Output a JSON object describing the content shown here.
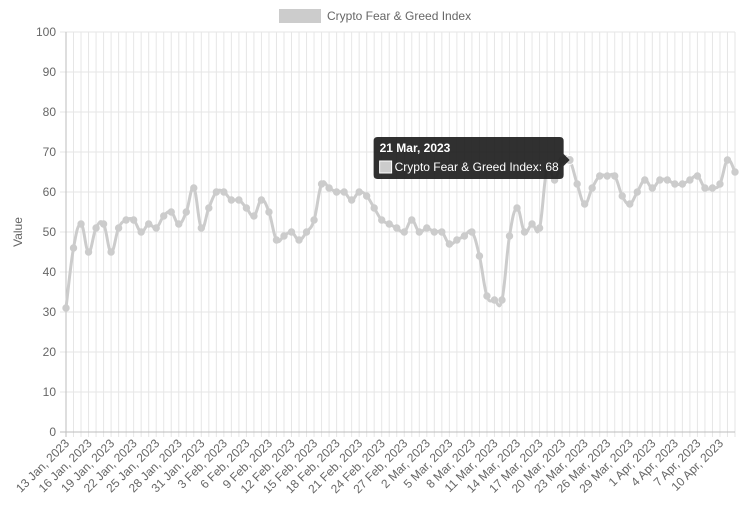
{
  "chart_data": {
    "type": "line",
    "legend": {
      "label": "Crypto Fear & Greed Index",
      "position": "top"
    },
    "ylabel": "Value",
    "ylim": [
      0,
      100
    ],
    "yticks": [
      0,
      10,
      20,
      30,
      40,
      50,
      60,
      70,
      80,
      90,
      100
    ],
    "grid": true,
    "colors": {
      "line": "#cccccc",
      "point": "#cccccc",
      "grid": "#e6e6e6",
      "tooltip_bg": "#1e1e1e"
    },
    "start_label": "13 Jan, 2023",
    "x_tick_labels": [
      "13 Jan, 2023",
      "16 Jan, 2023",
      "19 Jan, 2023",
      "22 Jan, 2023",
      "25 Jan, 2023",
      "28 Jan, 2023",
      "31 Jan, 2023",
      "3 Feb, 2023",
      "6 Feb, 2023",
      "9 Feb, 2023",
      "12 Feb, 2023",
      "15 Feb, 2023",
      "18 Feb, 2023",
      "21 Feb, 2023",
      "24 Feb, 2023",
      "27 Feb, 2023",
      "2 Mar, 2023",
      "5 Mar, 2023",
      "8 Mar, 2023",
      "11 Mar, 2023",
      "14 Mar, 2023",
      "17 Mar, 2023",
      "20 Mar, 2023",
      "23 Mar, 2023",
      "26 Mar, 2023",
      "29 Mar, 2023",
      "1 Apr, 2023",
      "4 Apr, 2023",
      "7 Apr, 2023",
      "10 Apr, 2023"
    ],
    "series": [
      {
        "name": "Crypto Fear & Greed Index",
        "values": [
          31,
          46,
          52,
          45,
          51,
          52,
          45,
          51,
          53,
          53,
          50,
          52,
          51,
          54,
          55,
          52,
          55,
          61,
          51,
          56,
          60,
          60,
          58,
          58,
          56,
          54,
          58,
          55,
          48,
          49,
          50,
          48,
          50,
          53,
          62,
          61,
          60,
          60,
          58,
          60,
          59,
          56,
          53,
          52,
          51,
          50,
          53,
          50,
          51,
          50,
          50,
          47,
          48,
          49,
          50,
          44,
          34,
          33,
          33,
          49,
          56,
          50,
          52,
          51,
          66,
          63,
          68,
          68,
          62,
          57,
          61,
          64,
          64,
          64,
          59,
          57,
          60,
          63,
          61,
          63,
          63,
          62,
          62,
          63,
          64,
          61,
          61,
          62,
          68,
          65
        ]
      }
    ],
    "tooltip": {
      "title": "21 Mar, 2023",
      "label": "Crypto Fear & Greed Index: 68"
    }
  }
}
